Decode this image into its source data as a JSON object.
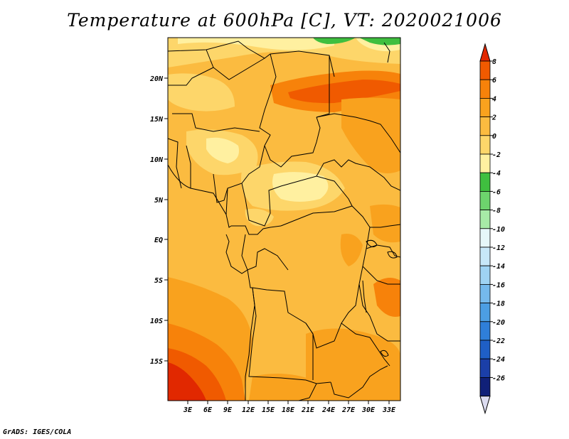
{
  "title": "Temperature at 600hPa [C], VT: 2020021006",
  "credit": "GrADS: IGES/COLA",
  "lat_labels": [
    "20N",
    "15N",
    "10N",
    "5N",
    "EQ",
    "5S",
    "10S",
    "15S"
  ],
  "lon_labels": [
    "3E",
    "6E",
    "9E",
    "12E",
    "15E",
    "18E",
    "21E",
    "24E",
    "27E",
    "30E",
    "33E"
  ],
  "colorbar": {
    "labels": [
      "8",
      "6",
      "4",
      "2",
      "0",
      "-2",
      "-4",
      "-6",
      "-8",
      "-10",
      "-12",
      "-14",
      "-16",
      "-18",
      "-20",
      "-22",
      "-24",
      "-26"
    ],
    "colors": [
      "#e12800",
      "#f05a00",
      "#f7820a",
      "#f9a21e",
      "#fbbb40",
      "#fdd66a",
      "#fff0a0",
      "#3fbf3f",
      "#6dd46d",
      "#a7eba7",
      "#e6f7f9",
      "#c7e7f8",
      "#9fd3f3",
      "#75b9ec",
      "#4c9ee3",
      "#2f7fd9",
      "#1f5fc6",
      "#1b3fa8",
      "#102078",
      "#dcdcf0"
    ]
  }
}
